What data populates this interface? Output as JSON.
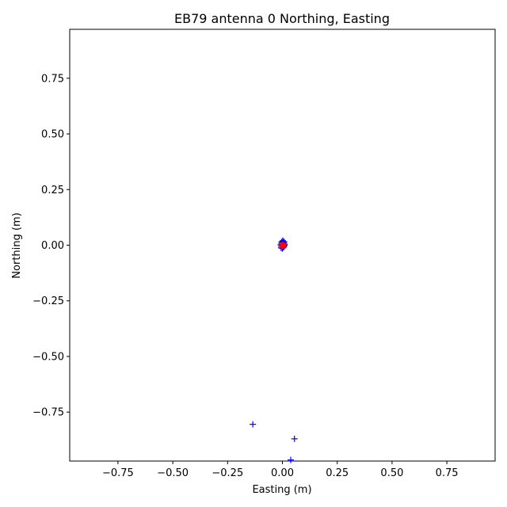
{
  "chart_data": {
    "type": "scatter",
    "title": "EB79 antenna 0 Northing, Easting",
    "xlabel": "Easting (m)",
    "ylabel": "Northing (m)",
    "xlim": [
      -0.97,
      0.97
    ],
    "ylim": [
      -0.97,
      0.97
    ],
    "grid": false,
    "x_ticks": [
      {
        "value": -0.75,
        "label": "−0.75"
      },
      {
        "value": -0.5,
        "label": "−0.50"
      },
      {
        "value": -0.25,
        "label": "−0.25"
      },
      {
        "value": 0.0,
        "label": "0.00"
      },
      {
        "value": 0.25,
        "label": "0.25"
      },
      {
        "value": 0.5,
        "label": "0.50"
      },
      {
        "value": 0.75,
        "label": "0.75"
      }
    ],
    "y_ticks": [
      {
        "value": 0.75,
        "label": "0.75"
      },
      {
        "value": 0.5,
        "label": "0.50"
      },
      {
        "value": 0.25,
        "label": "0.25"
      },
      {
        "value": 0.0,
        "label": "0.00"
      },
      {
        "value": -0.25,
        "label": "−0.25"
      },
      {
        "value": -0.5,
        "label": "−0.50"
      },
      {
        "value": -0.75,
        "label": "−0.75"
      }
    ],
    "series": [
      {
        "marker": "plus",
        "color": "#0000ff",
        "x": [
          0.0,
          0.005,
          -0.005,
          0.01,
          -0.008,
          0.003,
          0.008,
          -0.003,
          0.002,
          0.006,
          -0.006,
          0.004,
          -0.002,
          0.007,
          0.0,
          0.009,
          -0.004,
          0.001,
          -0.135,
          0.055,
          0.038
        ],
        "y": [
          0.0,
          0.01,
          -0.005,
          0.005,
          0.002,
          -0.01,
          0.015,
          0.008,
          0.02,
          -0.008,
          -0.012,
          0.012,
          0.005,
          -0.003,
          -0.015,
          0.0,
          0.014,
          0.018,
          -0.805,
          -0.87,
          -0.965
        ]
      },
      {
        "marker": "circle",
        "color": "#ff0000",
        "x": [
          0.001
        ],
        "y": [
          -0.001
        ]
      }
    ]
  }
}
